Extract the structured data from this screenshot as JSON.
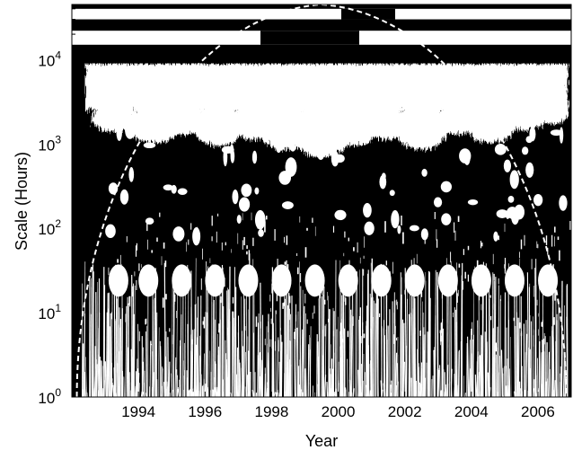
{
  "chart_data": {
    "type": "heatmap",
    "title": "",
    "xlabel": "Year",
    "ylabel": "Scale (Hours)",
    "x_range": [
      1992.0,
      2007.0
    ],
    "y_range": [
      1,
      45000
    ],
    "y_scale": "log",
    "x_ticks": [
      1994,
      1996,
      1998,
      2000,
      2002,
      2004,
      2006
    ],
    "x_tick_labels": [
      "1994",
      "1996",
      "1998",
      "2000",
      "2002",
      "2004",
      "2006"
    ],
    "y_ticks": [
      1,
      10,
      100,
      1000,
      10000
    ],
    "y_tick_labels": [
      {
        "base": "10",
        "exp": "0"
      },
      {
        "base": "10",
        "exp": "1"
      },
      {
        "base": "10",
        "exp": "2"
      },
      {
        "base": "10",
        "exp": "3"
      },
      {
        "base": "10",
        "exp": "4"
      }
    ],
    "colors": {
      "background": "#000000",
      "significant": "#ffffff",
      "cone_of_influence": "#ffffff"
    },
    "significance_regions": {
      "annual_band_scale_hours": [
        2500,
        9000
      ],
      "upper_bands_scale_hours": [
        [
          15000,
          22000
        ],
        [
          30000,
          40000
        ]
      ],
      "daily_blob_scale_hours": 24,
      "daily_blob_years": [
        1993.4,
        1994.3,
        1995.3,
        1996.3,
        1997.3,
        1998.3,
        1999.3,
        2000.3,
        2001.3,
        2002.3,
        2003.3,
        2004.3,
        2005.3,
        2006.3
      ]
    },
    "cone_of_influence": {
      "peak_year": 1999.5,
      "peak_scale_hours": 45000,
      "style": "dashed",
      "color": "#ffffff"
    },
    "grid": false,
    "legend": "none"
  }
}
